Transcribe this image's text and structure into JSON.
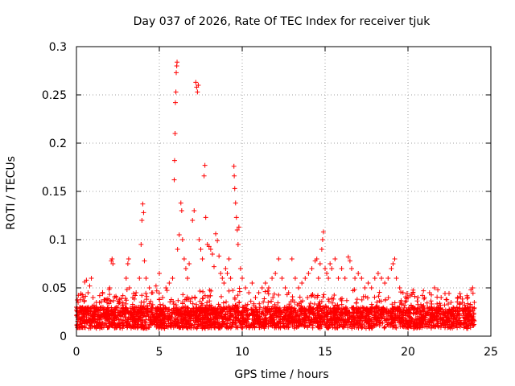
{
  "chart_data": {
    "type": "scatter",
    "title": "Day 037 of 2026, Rate Of TEC Index for receiver tjuk",
    "xlabel": "GPS time / hours",
    "ylabel": "ROTI / TECUs",
    "xlim": [
      0,
      25
    ],
    "ylim": [
      0,
      0.3
    ],
    "xticks": [
      0,
      5,
      10,
      15,
      20,
      25
    ],
    "xtick_labels": [
      "0",
      "5",
      "10",
      "15",
      "20",
      "25"
    ],
    "yticks": [
      0,
      0.05,
      0.1,
      0.15,
      0.2,
      0.25,
      0.3
    ],
    "ytick_labels": [
      "0",
      "0.05",
      "0.1",
      "0.15",
      "0.2",
      "0.25",
      "0.3"
    ],
    "grid": true,
    "marker": "+",
    "color": "#ff0000",
    "series": [
      {
        "name": "ROTI",
        "points": [
          [
            0.0,
            0.03
          ],
          [
            0.05,
            0.02
          ],
          [
            0.1,
            0.035
          ],
          [
            0.15,
            0.025
          ],
          [
            0.2,
            0.03
          ],
          [
            0.3,
            0.018
          ],
          [
            0.4,
            0.04
          ],
          [
            0.5,
            0.056
          ],
          [
            0.6,
            0.058
          ],
          [
            0.7,
            0.045
          ],
          [
            0.8,
            0.052
          ],
          [
            0.9,
            0.06
          ],
          [
            1.0,
            0.04
          ],
          [
            1.2,
            0.035
          ],
          [
            1.4,
            0.042
          ],
          [
            1.6,
            0.03
          ],
          [
            1.8,
            0.038
          ],
          [
            2.0,
            0.05
          ],
          [
            2.1,
            0.078
          ],
          [
            2.15,
            0.08
          ],
          [
            2.2,
            0.075
          ],
          [
            2.4,
            0.04
          ],
          [
            2.6,
            0.035
          ],
          [
            2.8,
            0.042
          ],
          [
            3.0,
            0.06
          ],
          [
            3.1,
            0.075
          ],
          [
            3.15,
            0.08
          ],
          [
            3.2,
            0.05
          ],
          [
            3.4,
            0.04
          ],
          [
            3.6,
            0.045
          ],
          [
            3.8,
            0.06
          ],
          [
            3.9,
            0.095
          ],
          [
            3.95,
            0.12
          ],
          [
            4.0,
            0.137
          ],
          [
            4.05,
            0.128
          ],
          [
            4.1,
            0.078
          ],
          [
            4.2,
            0.06
          ],
          [
            4.4,
            0.05
          ],
          [
            4.6,
            0.045
          ],
          [
            4.8,
            0.052
          ],
          [
            5.0,
            0.065
          ],
          [
            5.2,
            0.04
          ],
          [
            5.4,
            0.05
          ],
          [
            5.6,
            0.055
          ],
          [
            5.8,
            0.06
          ],
          [
            5.9,
            0.162
          ],
          [
            5.92,
            0.182
          ],
          [
            5.95,
            0.21
          ],
          [
            5.97,
            0.242
          ],
          [
            6.0,
            0.253
          ],
          [
            6.02,
            0.273
          ],
          [
            6.05,
            0.28
          ],
          [
            6.07,
            0.284
          ],
          [
            6.1,
            0.09
          ],
          [
            6.2,
            0.105
          ],
          [
            6.3,
            0.138
          ],
          [
            6.35,
            0.13
          ],
          [
            6.4,
            0.1
          ],
          [
            6.5,
            0.08
          ],
          [
            6.6,
            0.07
          ],
          [
            6.7,
            0.06
          ],
          [
            6.8,
            0.075
          ],
          [
            7.0,
            0.12
          ],
          [
            7.1,
            0.13
          ],
          [
            7.2,
            0.263
          ],
          [
            7.25,
            0.258
          ],
          [
            7.3,
            0.253
          ],
          [
            7.35,
            0.26
          ],
          [
            7.4,
            0.1
          ],
          [
            7.5,
            0.09
          ],
          [
            7.6,
            0.08
          ],
          [
            7.7,
            0.166
          ],
          [
            7.75,
            0.177
          ],
          [
            7.8,
            0.123
          ],
          [
            7.9,
            0.095
          ],
          [
            8.0,
            0.093
          ],
          [
            8.1,
            0.09
          ],
          [
            8.2,
            0.085
          ],
          [
            8.3,
            0.072
          ],
          [
            8.4,
            0.106
          ],
          [
            8.5,
            0.099
          ],
          [
            8.6,
            0.083
          ],
          [
            8.7,
            0.065
          ],
          [
            8.8,
            0.06
          ],
          [
            8.9,
            0.055
          ],
          [
            9.0,
            0.07
          ],
          [
            9.1,
            0.065
          ],
          [
            9.2,
            0.08
          ],
          [
            9.3,
            0.06
          ],
          [
            9.5,
            0.176
          ],
          [
            9.52,
            0.166
          ],
          [
            9.55,
            0.153
          ],
          [
            9.6,
            0.138
          ],
          [
            9.65,
            0.123
          ],
          [
            9.7,
            0.11
          ],
          [
            9.75,
            0.095
          ],
          [
            9.8,
            0.113
          ],
          [
            9.9,
            0.07
          ],
          [
            10.0,
            0.06
          ],
          [
            10.2,
            0.05
          ],
          [
            10.4,
            0.045
          ],
          [
            10.6,
            0.055
          ],
          [
            10.8,
            0.04
          ],
          [
            11.0,
            0.045
          ],
          [
            11.2,
            0.05
          ],
          [
            11.4,
            0.055
          ],
          [
            11.6,
            0.05
          ],
          [
            11.8,
            0.06
          ],
          [
            12.0,
            0.065
          ],
          [
            12.2,
            0.08
          ],
          [
            12.4,
            0.06
          ],
          [
            12.6,
            0.05
          ],
          [
            12.8,
            0.045
          ],
          [
            13.0,
            0.08
          ],
          [
            13.2,
            0.06
          ],
          [
            13.4,
            0.05
          ],
          [
            13.6,
            0.055
          ],
          [
            13.8,
            0.06
          ],
          [
            14.0,
            0.065
          ],
          [
            14.2,
            0.07
          ],
          [
            14.4,
            0.078
          ],
          [
            14.5,
            0.08
          ],
          [
            14.6,
            0.06
          ],
          [
            14.7,
            0.075
          ],
          [
            14.8,
            0.09
          ],
          [
            14.85,
            0.1
          ],
          [
            14.9,
            0.108
          ],
          [
            15.0,
            0.07
          ],
          [
            15.1,
            0.065
          ],
          [
            15.2,
            0.06
          ],
          [
            15.3,
            0.075
          ],
          [
            15.4,
            0.07
          ],
          [
            15.6,
            0.08
          ],
          [
            15.8,
            0.06
          ],
          [
            16.0,
            0.07
          ],
          [
            16.2,
            0.06
          ],
          [
            16.4,
            0.082
          ],
          [
            16.5,
            0.078
          ],
          [
            16.6,
            0.07
          ],
          [
            16.8,
            0.06
          ],
          [
            17.0,
            0.065
          ],
          [
            17.2,
            0.06
          ],
          [
            17.4,
            0.05
          ],
          [
            17.6,
            0.055
          ],
          [
            17.8,
            0.05
          ],
          [
            18.0,
            0.06
          ],
          [
            18.2,
            0.065
          ],
          [
            18.4,
            0.06
          ],
          [
            18.6,
            0.055
          ],
          [
            18.8,
            0.06
          ],
          [
            19.0,
            0.07
          ],
          [
            19.1,
            0.075
          ],
          [
            19.2,
            0.08
          ],
          [
            19.3,
            0.06
          ],
          [
            19.5,
            0.05
          ],
          [
            19.7,
            0.045
          ],
          [
            20.0,
            0.04
          ],
          [
            20.3,
            0.045
          ],
          [
            20.6,
            0.04
          ],
          [
            21.0,
            0.04
          ],
          [
            21.3,
            0.045
          ],
          [
            21.6,
            0.05
          ],
          [
            21.8,
            0.048
          ],
          [
            22.0,
            0.04
          ],
          [
            22.3,
            0.038
          ],
          [
            22.6,
            0.035
          ],
          [
            23.0,
            0.04
          ],
          [
            23.3,
            0.035
          ],
          [
            23.6,
            0.04
          ],
          [
            23.8,
            0.048
          ],
          [
            23.9,
            0.05
          ],
          [
            24.0,
            0.035
          ]
        ]
      }
    ],
    "band_description": "dense noise floor between 0.005 and 0.04 across 0-24 h"
  }
}
